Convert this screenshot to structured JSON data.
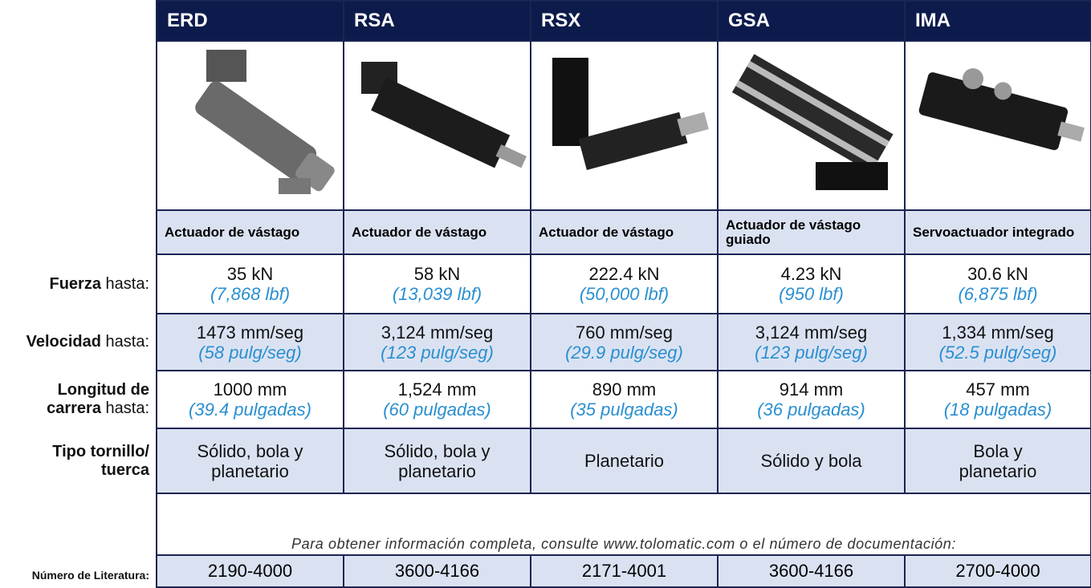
{
  "products": [
    {
      "name": "ERD",
      "type": "Actuador de vástago",
      "force": "35 kN",
      "force_alt": "(7,868 lbf)",
      "speed": "1473 mm/seg",
      "speed_alt": "(58 pulg/seg)",
      "stroke": "1000 mm",
      "stroke_alt": "(39.4 pulgadas)",
      "screw": "Sólido, bola y planetario",
      "literature": "2190-4000"
    },
    {
      "name": "RSA",
      "type": "Actuador de vástago",
      "force": "58 kN",
      "force_alt": "(13,039 lbf)",
      "speed": "3,124 mm/seg",
      "speed_alt": "(123 pulg/seg)",
      "stroke": "1,524 mm",
      "stroke_alt": "(60 pulgadas)",
      "screw": "Sólido, bola y planetario",
      "literature": "3600-4166"
    },
    {
      "name": "RSX",
      "type": "Actuador de vástago",
      "force": "222.4 kN",
      "force_alt": "(50,000 lbf)",
      "speed": "760 mm/seg",
      "speed_alt": "(29.9 pulg/seg)",
      "stroke": "890 mm",
      "stroke_alt": "(35 pulgadas)",
      "screw": "Planetario",
      "literature": "2171-4001"
    },
    {
      "name": "GSA",
      "type": "Actuador de vástago guiado",
      "force": "4.23 kN",
      "force_alt": "(950 lbf)",
      "speed": "3,124 mm/seg",
      "speed_alt": "(123 pulg/seg)",
      "stroke": "914 mm",
      "stroke_alt": "(36 pulgadas)",
      "screw": "Sólido y bola",
      "literature": "3600-4166"
    },
    {
      "name": "IMA",
      "type": "Servoactuador integrado",
      "force": "30.6 kN",
      "force_alt": "(6,875 lbf)",
      "speed": "1,334 mm/seg",
      "speed_alt": "(52.5 pulg/seg)",
      "stroke": "457 mm",
      "stroke_alt": "(18 pulgadas)",
      "screw": "Bola y planetario",
      "literature": "2700-4000"
    }
  ],
  "row_labels": {
    "force": {
      "bold": "Fuerza",
      "rest": "hasta:"
    },
    "speed": {
      "bold": "Velocidad",
      "rest": "hasta:"
    },
    "stroke": {
      "bold": "Longitud de carrera",
      "rest": "hasta:"
    },
    "screw": {
      "bold": "Tipo tornillo/ tuerca"
    }
  },
  "note": "Para obtener información completa, consulte www.tolomatic.com o el número de documentación:",
  "literature_label": "Número de Literatura:"
}
